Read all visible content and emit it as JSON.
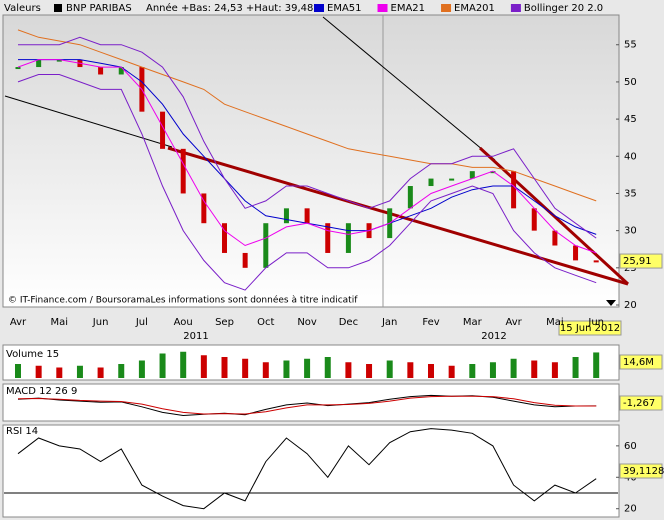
{
  "header": {
    "label": "Valeurs",
    "name": "BNP PARIBAS",
    "range": "Année +Bas: 24,53 +Haut: 39,48"
  },
  "copyright": "© IT-Finance.com / BoursoramaLes informations sont données à titre indicatif",
  "date_label": "15 Jun 2012",
  "year_labels": [
    "2011",
    "2012"
  ],
  "chart_data": [
    {
      "type": "line",
      "title": "BNP PARIBAS",
      "categories": [
        "Avr",
        null,
        "Mai",
        null,
        "Jun",
        null,
        "Jul",
        null,
        "Aou",
        null,
        "Sep",
        null,
        "Oct",
        null,
        "Nov",
        null,
        "Dec",
        null,
        "Jan",
        null,
        "Fev",
        null,
        "Mar",
        null,
        "Avr",
        null,
        "Mai",
        null,
        "Jun"
      ],
      "ylim": [
        20,
        59
      ],
      "yticks": [
        20,
        25,
        30,
        35,
        40,
        45,
        50,
        55
      ],
      "series": [
        {
          "name": "BNP PARIBAS",
          "color": "#1a8a1a",
          "down_color": "#cc0000",
          "values": [
            52,
            53,
            53,
            52,
            51,
            52,
            46,
            41,
            35,
            31,
            27,
            25,
            31,
            33,
            31,
            27,
            31,
            29,
            33,
            36,
            37,
            37,
            38,
            38,
            33,
            30,
            28,
            26,
            25.91
          ],
          "value_labels": [
            null,
            null,
            null,
            null,
            null,
            null,
            null,
            null,
            null,
            null,
            null,
            null,
            null,
            null,
            null,
            null,
            null,
            null,
            null,
            null,
            null,
            null,
            null,
            null,
            null,
            null,
            null,
            null,
            "25,91"
          ]
        },
        {
          "name": "EMA51",
          "color": "#0000cc",
          "values": [
            53,
            53,
            53,
            53,
            52.5,
            52,
            50,
            47,
            43,
            40,
            37,
            34,
            32,
            31.5,
            31,
            30.5,
            30,
            30,
            31,
            32,
            33,
            34.5,
            35.5,
            36,
            36,
            34,
            32,
            30.5,
            29.5
          ]
        },
        {
          "name": "EMA21",
          "color": "#ee00ee",
          "values": [
            52,
            53,
            53,
            52.5,
            52,
            52,
            49,
            44,
            39,
            34,
            30,
            28,
            29,
            30.5,
            31,
            30,
            29.5,
            30,
            31,
            33,
            35,
            36,
            37,
            38,
            36,
            33,
            30,
            28,
            27
          ]
        },
        {
          "name": "EMA201",
          "color": "#e07020",
          "values": [
            57,
            56,
            55.5,
            55,
            54,
            53,
            52,
            51,
            50,
            49,
            47,
            46,
            45,
            44,
            43,
            42,
            41,
            40.5,
            40,
            39.5,
            39,
            39,
            38.5,
            38.5,
            38,
            37,
            36,
            35,
            34
          ]
        },
        {
          "name": "Bollinger 20 2.0",
          "color": "#7a1fc8",
          "values": [
            55,
            55,
            55,
            56,
            55,
            55,
            54,
            52,
            48,
            42,
            37,
            33,
            34,
            36,
            36,
            35,
            34,
            33,
            34,
            37,
            39,
            39,
            40,
            40,
            41,
            37,
            33,
            31,
            29
          ],
          "lower": [
            50,
            51,
            51,
            50,
            49,
            49,
            43,
            36,
            30,
            26,
            23,
            22,
            25,
            27,
            27,
            25,
            25,
            26,
            28,
            31,
            34,
            35,
            36,
            35,
            30,
            27,
            25,
            24,
            23
          ]
        }
      ]
    },
    {
      "type": "bar",
      "title": "Volume 15",
      "ylim": [
        0,
        16
      ],
      "color": "#cc0000",
      "up_color": "#1a8a1a",
      "values": [
        8,
        7,
        6,
        7,
        6,
        8,
        10,
        14,
        15,
        13,
        12,
        11,
        9,
        10,
        11,
        12,
        9,
        8,
        10,
        9,
        8,
        7,
        8,
        9,
        11,
        10,
        9,
        12,
        14.6
      ],
      "value_labels": [
        null,
        null,
        null,
        null,
        null,
        null,
        null,
        null,
        null,
        null,
        null,
        null,
        null,
        null,
        null,
        null,
        null,
        null,
        null,
        null,
        null,
        null,
        null,
        null,
        null,
        null,
        null,
        null,
        "14,6M"
      ]
    },
    {
      "type": "line",
      "title": "MACD 12 26 9",
      "ylim": [
        -5,
        4
      ],
      "series": [
        {
          "color": "#000000",
          "values": [
            0.5,
            0.8,
            0.3,
            0,
            -0.3,
            -0.2,
            -1.5,
            -3,
            -3.8,
            -3.5,
            -3.2,
            -3.6,
            -2.2,
            -1,
            -0.5,
            -1.2,
            -0.8,
            -0.4,
            0.5,
            1.2,
            1.5,
            1.3,
            1.4,
            1.0,
            0,
            -1,
            -1.5,
            -1.3,
            -1.267
          ],
          "value_labels": [
            null,
            null,
            null,
            null,
            null,
            null,
            null,
            null,
            null,
            null,
            null,
            null,
            null,
            null,
            null,
            null,
            null,
            null,
            null,
            null,
            null,
            null,
            null,
            null,
            null,
            null,
            null,
            null,
            "-1,267"
          ]
        },
        {
          "color": "#cc0000",
          "values": [
            0.6,
            0.7,
            0.5,
            0.2,
            0,
            -0.1,
            -0.8,
            -2,
            -3,
            -3.4,
            -3.3,
            -3.4,
            -2.8,
            -1.8,
            -1,
            -1,
            -0.9,
            -0.6,
            0,
            0.8,
            1.2,
            1.3,
            1.3,
            1.2,
            0.6,
            -0.4,
            -1.1,
            -1.3,
            -1.3
          ]
        }
      ]
    },
    {
      "type": "line",
      "title": "RSI 14",
      "ylim": [
        16,
        72
      ],
      "yticks": [
        20,
        40,
        60
      ],
      "levels": [
        30
      ],
      "series": [
        {
          "color": "#000000",
          "values": [
            55,
            65,
            60,
            58,
            50,
            58,
            35,
            28,
            22,
            20,
            30,
            25,
            50,
            65,
            55,
            40,
            60,
            48,
            62,
            69,
            71,
            70,
            68,
            60,
            35,
            25,
            35,
            30,
            39.1128
          ],
          "value_labels": [
            null,
            null,
            null,
            null,
            null,
            null,
            null,
            null,
            null,
            null,
            null,
            null,
            null,
            null,
            null,
            null,
            null,
            null,
            null,
            null,
            null,
            null,
            null,
            null,
            null,
            null,
            null,
            null,
            "39,1128"
          ]
        }
      ]
    }
  ]
}
